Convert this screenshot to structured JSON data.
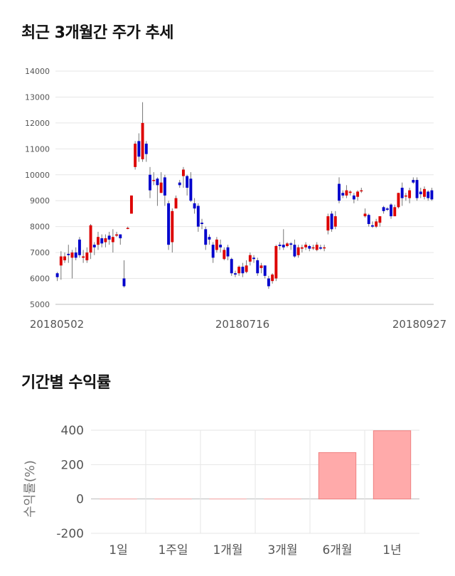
{
  "section1": {
    "title": "최근 3개월간 주가 추세"
  },
  "section2": {
    "title": "기간별 수익률"
  },
  "chart_data": [
    {
      "type": "candlestick",
      "ylim": [
        5000,
        14000
      ],
      "y_ticks": [
        "5000",
        "6000",
        "7000",
        "8000",
        "9000",
        "10000",
        "11000",
        "12000",
        "13000",
        "14000"
      ],
      "x_tick_labels": [
        "20180502",
        "20180716",
        "20180927"
      ],
      "up_color": "#dd0000",
      "down_color": "#0000cc",
      "candles": [
        [
          6200,
          6050,
          6250,
          5900
        ],
        [
          6500,
          6850,
          7050,
          5950
        ],
        [
          6700,
          6850,
          7000,
          6600
        ],
        [
          6950,
          6900,
          7300,
          6600
        ],
        [
          6800,
          7000,
          7100,
          6000
        ],
        [
          7000,
          6800,
          7200,
          6700
        ],
        [
          7500,
          6900,
          7600,
          6800
        ],
        [
          6800,
          6850,
          7100,
          6600
        ],
        [
          6700,
          7000,
          7200,
          6600
        ],
        [
          7000,
          8050,
          8100,
          6750
        ],
        [
          7300,
          7200,
          7400,
          6900
        ],
        [
          7300,
          7600,
          7800,
          7100
        ],
        [
          7550,
          7350,
          7700,
          7200
        ],
        [
          7400,
          7550,
          7700,
          7200
        ],
        [
          7650,
          7500,
          7800,
          7300
        ],
        [
          7400,
          7600,
          7900,
          7000
        ],
        [
          7650,
          7700,
          7800,
          7600
        ],
        [
          7700,
          7550,
          7700,
          7300
        ],
        [
          6000,
          5700,
          6700,
          5650
        ],
        [
          7950,
          7950,
          8000,
          7900
        ],
        [
          8500,
          9200,
          9200,
          8500
        ],
        [
          10300,
          11200,
          11300,
          10200
        ],
        [
          11300,
          10700,
          11600,
          10500
        ],
        [
          10600,
          12000,
          12800,
          10500
        ],
        [
          11200,
          10800,
          11300,
          10500
        ],
        [
          10000,
          9400,
          10300,
          9100
        ],
        [
          9800,
          9800,
          10100,
          9600
        ],
        [
          9850,
          9600,
          9900,
          8800
        ],
        [
          9300,
          9700,
          10100,
          9300
        ],
        [
          9900,
          9200,
          10000,
          8800
        ],
        [
          8900,
          7300,
          9000,
          7100
        ],
        [
          7400,
          8600,
          8700,
          7000
        ],
        [
          8700,
          9100,
          9200,
          8700
        ],
        [
          9700,
          9600,
          9800,
          9500
        ],
        [
          9950,
          10200,
          10300,
          9500
        ],
        [
          9950,
          9500,
          10000,
          9200
        ],
        [
          9850,
          9000,
          10100,
          8950
        ],
        [
          8900,
          8700,
          9100,
          8500
        ],
        [
          8800,
          8000,
          8900,
          7800
        ],
        [
          8150,
          8100,
          8300,
          7900
        ],
        [
          7900,
          7300,
          8000,
          7100
        ],
        [
          7600,
          7500,
          7700,
          7300
        ],
        [
          7300,
          6800,
          7400,
          6600
        ],
        [
          7100,
          7500,
          7600,
          7000
        ],
        [
          7300,
          7200,
          7500,
          7000
        ],
        [
          6750,
          7100,
          7200,
          6700
        ],
        [
          7200,
          6850,
          7300,
          6700
        ],
        [
          6750,
          6200,
          6800,
          6100
        ],
        [
          6200,
          6150,
          6300,
          6050
        ],
        [
          6200,
          6450,
          6500,
          6100
        ],
        [
          6450,
          6200,
          6600,
          6050
        ],
        [
          6250,
          6500,
          6700,
          6200
        ],
        [
          6650,
          6900,
          7000,
          6500
        ],
        [
          6800,
          6750,
          6900,
          6600
        ],
        [
          6700,
          6200,
          6800,
          6100
        ],
        [
          6400,
          6500,
          6600,
          6200
        ],
        [
          6500,
          6100,
          6500,
          6000
        ],
        [
          6000,
          5700,
          6100,
          5600
        ],
        [
          5900,
          6150,
          6200,
          5800
        ],
        [
          6000,
          7250,
          7300,
          5900
        ],
        [
          7300,
          7250,
          7400,
          7100
        ],
        [
          7300,
          7200,
          7900,
          7100
        ],
        [
          7250,
          7350,
          7400,
          7200
        ],
        [
          7350,
          7300,
          7400,
          7100
        ],
        [
          7300,
          6850,
          7500,
          6800
        ],
        [
          6900,
          7200,
          7300,
          6800
        ],
        [
          7150,
          7200,
          7300,
          7000
        ],
        [
          7200,
          7300,
          7400,
          7100
        ],
        [
          7250,
          7150,
          7300,
          7050
        ],
        [
          7200,
          7200,
          7300,
          7100
        ],
        [
          7100,
          7300,
          7400,
          7050
        ],
        [
          7200,
          7150,
          7300,
          7100
        ],
        [
          7200,
          7200,
          7300,
          7050
        ],
        [
          7850,
          8400,
          8500,
          7700
        ],
        [
          8500,
          7900,
          8600,
          7800
        ],
        [
          8000,
          8400,
          8600,
          7900
        ],
        [
          9650,
          9000,
          9900,
          8900
        ],
        [
          9300,
          9200,
          9400,
          9100
        ],
        [
          9200,
          9400,
          9600,
          9100
        ],
        [
          9300,
          9350,
          9400,
          9200
        ],
        [
          9200,
          9050,
          9300,
          8900
        ],
        [
          9150,
          9350,
          9400,
          9000
        ],
        [
          9400,
          9400,
          9500,
          9300
        ],
        [
          8400,
          8500,
          8700,
          8350
        ],
        [
          8450,
          8100,
          8500,
          8000
        ],
        [
          8050,
          8000,
          8200,
          7950
        ],
        [
          8000,
          8200,
          8300,
          7950
        ],
        [
          8150,
          8400,
          8400,
          8000
        ],
        [
          8750,
          8600,
          8800,
          8500
        ],
        [
          8700,
          8650,
          8750,
          8600
        ],
        [
          8850,
          8400,
          8900,
          8300
        ],
        [
          8400,
          8750,
          8850,
          8400
        ],
        [
          8750,
          9300,
          9300,
          8700
        ],
        [
          9500,
          9100,
          9700,
          8800
        ],
        [
          9200,
          9200,
          9300,
          9000
        ],
        [
          9100,
          9400,
          9500,
          8900
        ],
        [
          9800,
          9700,
          9900,
          9650
        ],
        [
          9800,
          9100,
          9900,
          9000
        ],
        [
          9350,
          9250,
          9500,
          9100
        ],
        [
          9150,
          9450,
          9550,
          9050
        ],
        [
          9350,
          9100,
          9400,
          9000
        ],
        [
          9400,
          9050,
          9500,
          9000
        ]
      ]
    },
    {
      "type": "bar",
      "categories": [
        "1일",
        "1주일",
        "1개월",
        "3개월",
        "6개월",
        "1년"
      ],
      "values": [
        0,
        0,
        0,
        0,
        270,
        397
      ],
      "ylabel": "수익률(%)",
      "ylim": [
        -200,
        420
      ],
      "y_ticks": [
        "400",
        "200",
        "0",
        "-200"
      ],
      "bar_color": "#ffaaaa",
      "bar_border": "#f08080"
    }
  ]
}
